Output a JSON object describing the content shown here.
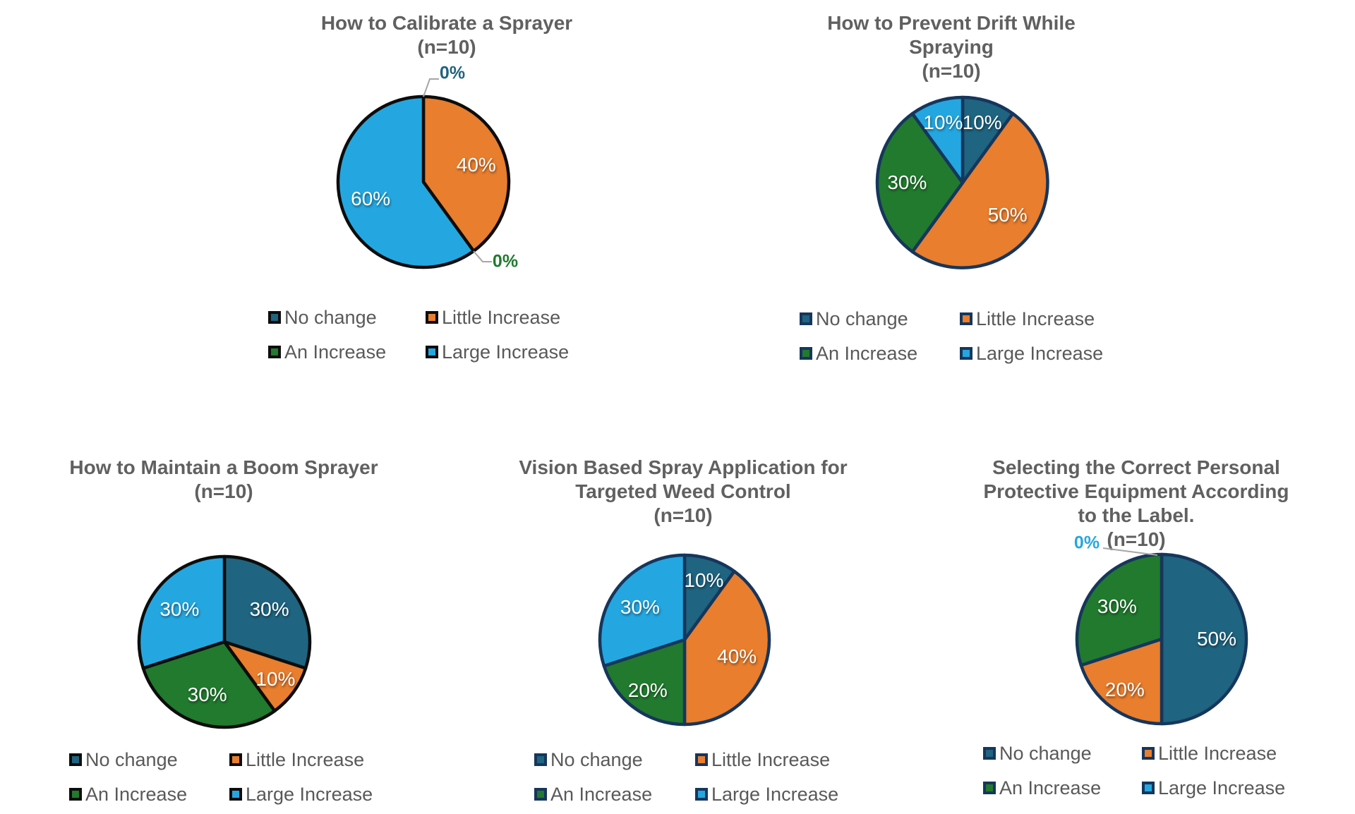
{
  "page": {
    "background": "#FFFFFF",
    "description_title": "Pie chart figure group"
  },
  "series": [
    {
      "name": "No change",
      "color": "#1F6480"
    },
    {
      "name": "Little Increase",
      "color": "#E87E2E"
    },
    {
      "name": "An Increase",
      "color": "#217A2E"
    },
    {
      "name": "Large Increase",
      "color": "#24A7E0"
    }
  ],
  "styles": {
    "slice_border_dark": "#16365C",
    "slice_border_black": "#0D0D0D",
    "title_color": "#606060",
    "legend_text_color": "#595959",
    "callout_line_color": "#A6A6A6",
    "data_label_color": "#FFFFFF"
  },
  "chart_data": [
    {
      "type": "pie",
      "title": "How to Calibrate a Sprayer",
      "subtitle": "(n=10)",
      "n": 10,
      "title_lines": [
        "How to Calibrate a Sprayer",
        "(n=10)"
      ],
      "categories": [
        "No change",
        "Little Increase",
        "An Increase",
        "Large Increase"
      ],
      "values_pct": [
        0,
        40,
        0,
        60
      ],
      "data_labels": [
        "0%",
        "40%",
        "0%",
        "60%"
      ],
      "legend_position": "bottom"
    },
    {
      "type": "pie",
      "title": "How to Prevent Drift While Spraying",
      "subtitle": "(n=10)",
      "n": 10,
      "title_lines": [
        "How to Prevent Drift While",
        "Spraying",
        "(n=10)"
      ],
      "categories": [
        "No change",
        "Little Increase",
        "An Increase",
        "Large Increase"
      ],
      "values_pct": [
        10,
        50,
        30,
        10
      ],
      "data_labels": [
        "10%",
        "50%",
        "30%",
        "10%"
      ],
      "legend_position": "bottom"
    },
    {
      "type": "pie",
      "title": "How to Maintain a Boom Sprayer",
      "subtitle": "(n=10)",
      "n": 10,
      "title_lines": [
        "How to Maintain a Boom Sprayer",
        "(n=10)"
      ],
      "categories": [
        "No change",
        "Little Increase",
        "An Increase",
        "Large Increase"
      ],
      "values_pct": [
        30,
        10,
        30,
        30
      ],
      "data_labels": [
        "30%",
        "10%",
        "30%",
        "30%"
      ],
      "legend_position": "bottom"
    },
    {
      "type": "pie",
      "title": "Vision Based Spray Application for Targeted Weed Control",
      "subtitle": "(n=10)",
      "n": 10,
      "title_lines": [
        "Vision Based Spray Application for",
        "Targeted Weed Control",
        "(n=10)"
      ],
      "categories": [
        "No change",
        "Little Increase",
        "An Increase",
        "Large Increase"
      ],
      "values_pct": [
        10,
        40,
        20,
        30
      ],
      "data_labels": [
        "10%",
        "40%",
        "20%",
        "30%"
      ],
      "legend_position": "bottom"
    },
    {
      "type": "pie",
      "title": "Selecting the Correct Personal Protective Equipment According to the Label.",
      "subtitle": "(n=10)",
      "n": 10,
      "title_lines": [
        "Selecting the Correct Personal",
        "Protective Equipment According",
        "to the Label.",
        "(n=10)"
      ],
      "categories": [
        "No change",
        "Little Increase",
        "An Increase",
        "Large Increase"
      ],
      "values_pct": [
        50,
        20,
        30,
        0
      ],
      "data_labels": [
        "50%",
        "20%",
        "30%",
        "0%"
      ],
      "legend_position": "bottom"
    }
  ]
}
